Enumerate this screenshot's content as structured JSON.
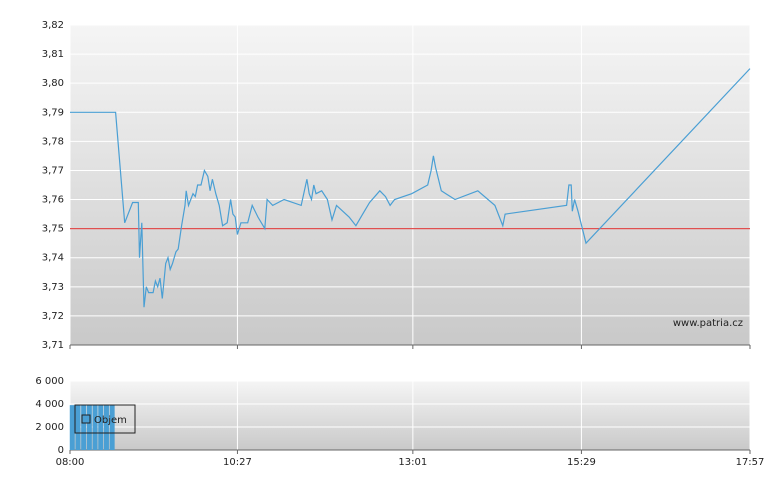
{
  "chart_data": [
    {
      "type": "line",
      "annotation": "www.patria.cz",
      "ylim": [
        3.71,
        3.82
      ],
      "yticks": [
        {
          "value": 3.71,
          "label": "3,71"
        },
        {
          "value": 3.72,
          "label": "3,72"
        },
        {
          "value": 3.73,
          "label": "3,73"
        },
        {
          "value": 3.74,
          "label": "3,74"
        },
        {
          "value": 3.75,
          "label": "3,75"
        },
        {
          "value": 3.76,
          "label": "3,76"
        },
        {
          "value": 3.77,
          "label": "3,77"
        },
        {
          "value": 3.78,
          "label": "3,78"
        },
        {
          "value": 3.79,
          "label": "3,79"
        },
        {
          "value": 3.8,
          "label": "3,80"
        },
        {
          "value": 3.81,
          "label": "3,81"
        },
        {
          "value": 3.82,
          "label": "3,82"
        }
      ],
      "reference_line": {
        "value": 3.75,
        "color": "#e05050"
      },
      "grid": true,
      "series": [
        {
          "color": "#4a9fd4",
          "x": [
            480,
            520,
            528,
            535,
            540,
            541,
            542,
            543,
            545,
            547,
            549,
            553,
            555,
            557,
            559,
            561,
            564,
            566,
            568,
            570,
            573,
            575,
            578,
            581,
            582,
            584,
            588,
            590,
            592,
            595,
            598,
            601,
            603,
            605,
            608,
            611,
            614,
            618,
            621,
            623,
            625,
            627,
            630,
            636,
            640,
            645,
            651,
            653,
            658,
            668,
            683,
            688,
            690,
            692,
            694,
            696,
            701,
            706,
            710,
            714,
            725,
            731,
            737,
            743,
            752,
            757,
            761,
            765,
            780,
            794,
            797,
            799,
            801,
            806,
            810,
            818,
            838,
            853,
            860,
            862,
            916,
            918,
            920,
            921,
            923,
            926,
            933,
            1077
          ],
          "values": [
            3.79,
            3.79,
            3.752,
            3.759,
            3.759,
            3.74,
            3.746,
            3.752,
            3.723,
            3.73,
            3.728,
            3.728,
            3.732,
            3.73,
            3.733,
            3.726,
            3.738,
            3.74,
            3.736,
            3.738,
            3.742,
            3.743,
            3.751,
            3.758,
            3.763,
            3.758,
            3.762,
            3.761,
            3.765,
            3.765,
            3.77,
            3.768,
            3.763,
            3.767,
            3.762,
            3.758,
            3.751,
            3.752,
            3.76,
            3.755,
            3.754,
            3.748,
            3.752,
            3.752,
            3.758,
            3.754,
            3.75,
            3.76,
            3.758,
            3.76,
            3.758,
            3.767,
            3.762,
            3.76,
            3.765,
            3.762,
            3.763,
            3.76,
            3.753,
            3.758,
            3.754,
            3.751,
            3.755,
            3.759,
            3.763,
            3.761,
            3.758,
            3.76,
            3.762,
            3.765,
            3.77,
            3.775,
            3.771,
            3.763,
            3.762,
            3.76,
            3.763,
            3.758,
            3.751,
            3.755,
            3.758,
            3.765,
            3.765,
            3.756,
            3.76,
            3.756,
            3.745,
            3.805
          ]
        }
      ]
    },
    {
      "type": "bar",
      "legend": "Objem",
      "xlim": [
        480,
        1077
      ],
      "xticks": [
        {
          "value": 480,
          "label": "08:00"
        },
        {
          "value": 627,
          "label": "10:27"
        },
        {
          "value": 781,
          "label": "13:01"
        },
        {
          "value": 929,
          "label": "15:29"
        },
        {
          "value": 1077,
          "label": "17:57"
        }
      ],
      "ylim": [
        0,
        6000
      ],
      "yticks": [
        0,
        {
          "value": 2000,
          "label": "2 000"
        },
        {
          "value": 4000,
          "label": "4 000"
        },
        {
          "value": 6000,
          "label": "6 000"
        }
      ],
      "grid": true,
      "series": [
        {
          "color": "#4a9fd4",
          "x": [
            482,
            487,
            492,
            497,
            502,
            507,
            512,
            517
          ],
          "values": [
            3900,
            3900,
            3900,
            3900,
            3900,
            3900,
            3900,
            3900
          ]
        }
      ]
    }
  ]
}
